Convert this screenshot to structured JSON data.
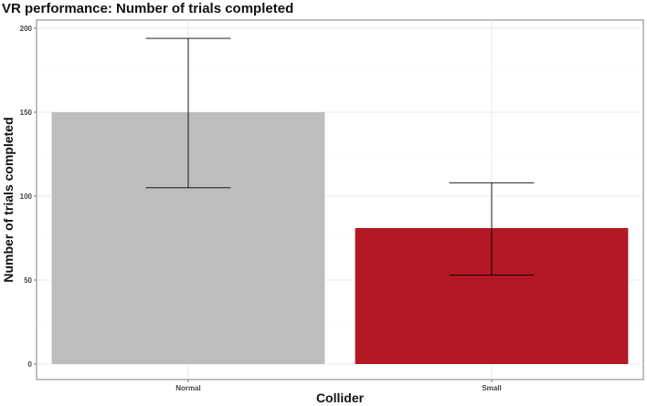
{
  "chart_data": {
    "type": "bar",
    "title": "VR performance: Number of trials completed",
    "xlabel": "Collider",
    "ylabel": "Number of trials completed",
    "categories": [
      "Normal",
      "Small"
    ],
    "values": [
      150,
      81
    ],
    "error_low": [
      105,
      53
    ],
    "error_high": [
      194,
      108
    ],
    "bar_colors": [
      "#bdbdbd",
      "#b31824"
    ],
    "ylim": [
      0,
      200
    ],
    "yticks": [
      0,
      50,
      100,
      150,
      200
    ],
    "grid": true,
    "legend": "none"
  }
}
